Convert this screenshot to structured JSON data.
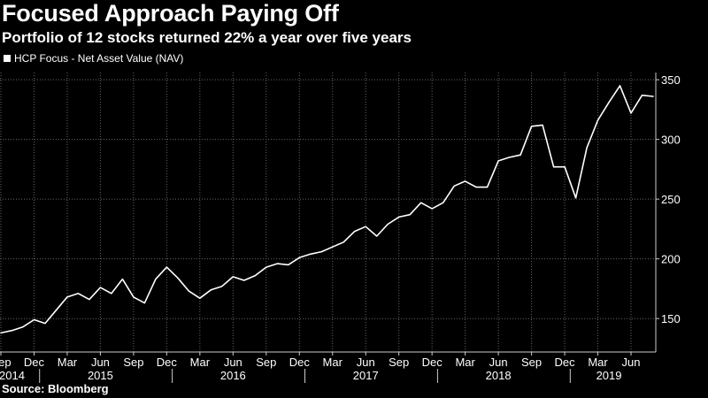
{
  "chart_data": {
    "type": "line",
    "title": "Focused Approach Paying Off",
    "subtitle": "Portfolio of 12 stocks returned 22% a year over five years",
    "source": "Source: Bloomberg",
    "legend": {
      "placement": "top-left",
      "entries": [
        "HCP Focus - Net Asset Value (NAV)"
      ]
    },
    "grid": true,
    "ylim": [
      122,
      356
    ],
    "y_ticks": [
      150,
      200,
      250,
      300,
      350
    ],
    "xlim": [
      "2014-09",
      "2019-08"
    ],
    "x_ticks": [
      {
        "x": "2014-09",
        "label": "Sep"
      },
      {
        "x": "2014-12",
        "label": "Dec"
      },
      {
        "x": "2015-03",
        "label": "Mar"
      },
      {
        "x": "2015-06",
        "label": "Jun"
      },
      {
        "x": "2015-09",
        "label": "Sep"
      },
      {
        "x": "2015-12",
        "label": "Dec"
      },
      {
        "x": "2016-03",
        "label": "Mar"
      },
      {
        "x": "2016-06",
        "label": "Jun"
      },
      {
        "x": "2016-09",
        "label": "Sep"
      },
      {
        "x": "2016-12",
        "label": "Dec"
      },
      {
        "x": "2017-03",
        "label": "Mar"
      },
      {
        "x": "2017-06",
        "label": "Jun"
      },
      {
        "x": "2017-09",
        "label": "Sep"
      },
      {
        "x": "2017-12",
        "label": "Dec"
      },
      {
        "x": "2018-03",
        "label": "Mar"
      },
      {
        "x": "2018-06",
        "label": "Jun"
      },
      {
        "x": "2018-09",
        "label": "Sep"
      },
      {
        "x": "2018-12",
        "label": "Dec"
      },
      {
        "x": "2019-03",
        "label": "Mar"
      },
      {
        "x": "2019-06",
        "label": "Jun"
      }
    ],
    "year_labels": [
      {
        "x": "2014-10",
        "label": "2014"
      },
      {
        "x": "2015-06",
        "label": "2015"
      },
      {
        "x": "2016-06",
        "label": "2016"
      },
      {
        "x": "2017-06",
        "label": "2017"
      },
      {
        "x": "2018-06",
        "label": "2018"
      },
      {
        "x": "2019-04",
        "label": "2019"
      }
    ],
    "year_boundaries": [
      "2014-12",
      "2015-12",
      "2016-12",
      "2017-12",
      "2018-12"
    ],
    "series": [
      {
        "name": "HCP Focus - Net Asset Value (NAV)",
        "color": "#ffffff",
        "points": [
          [
            "2014-09",
            138
          ],
          [
            "2014-10",
            140
          ],
          [
            "2014-11",
            143
          ],
          [
            "2014-12",
            149
          ],
          [
            "2015-01",
            146
          ],
          [
            "2015-02",
            157
          ],
          [
            "2015-03",
            168
          ],
          [
            "2015-04",
            171
          ],
          [
            "2015-05",
            166
          ],
          [
            "2015-06",
            176
          ],
          [
            "2015-07",
            171
          ],
          [
            "2015-08",
            183
          ],
          [
            "2015-09",
            168
          ],
          [
            "2015-10",
            163
          ],
          [
            "2015-11",
            183
          ],
          [
            "2015-12",
            193
          ],
          [
            "2016-01",
            184
          ],
          [
            "2016-02",
            173
          ],
          [
            "2016-03",
            167
          ],
          [
            "2016-04",
            174
          ],
          [
            "2016-05",
            177
          ],
          [
            "2016-06",
            185
          ],
          [
            "2016-07",
            182
          ],
          [
            "2016-08",
            186
          ],
          [
            "2016-09",
            193
          ],
          [
            "2016-10",
            196
          ],
          [
            "2016-11",
            195
          ],
          [
            "2016-12",
            201
          ],
          [
            "2017-01",
            204
          ],
          [
            "2017-02",
            206
          ],
          [
            "2017-03",
            210
          ],
          [
            "2017-04",
            214
          ],
          [
            "2017-05",
            223
          ],
          [
            "2017-06",
            227
          ],
          [
            "2017-07",
            219
          ],
          [
            "2017-08",
            229
          ],
          [
            "2017-09",
            235
          ],
          [
            "2017-10",
            237
          ],
          [
            "2017-11",
            247
          ],
          [
            "2017-12",
            242
          ],
          [
            "2018-01",
            247
          ],
          [
            "2018-02",
            261
          ],
          [
            "2018-03",
            265
          ],
          [
            "2018-04",
            260
          ],
          [
            "2018-05",
            260
          ],
          [
            "2018-06",
            282
          ],
          [
            "2018-07",
            285
          ],
          [
            "2018-08",
            287
          ],
          [
            "2018-09",
            311
          ],
          [
            "2018-10",
            312
          ],
          [
            "2018-11",
            277
          ],
          [
            "2018-12",
            277
          ],
          [
            "2019-01",
            251
          ],
          [
            "2019-02",
            293
          ],
          [
            "2019-03",
            316
          ],
          [
            "2019-04",
            331
          ],
          [
            "2019-05",
            345
          ],
          [
            "2019-06",
            322
          ],
          [
            "2019-07",
            337
          ],
          [
            "2019-08",
            336
          ]
        ]
      }
    ]
  },
  "colors": {
    "background": "#000000",
    "line": "#ffffff",
    "grid": "#666666",
    "axis": "#cccccc",
    "text": "#ffffff"
  }
}
